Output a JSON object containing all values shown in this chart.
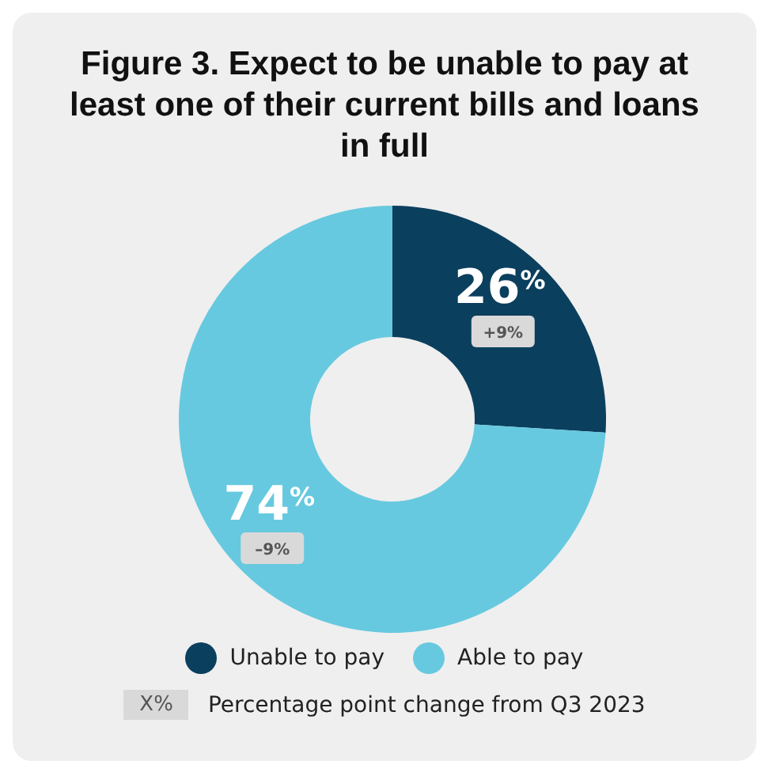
{
  "chart_data": {
    "type": "donut",
    "title": "Figure 3. Expect to be unable to pay at least one of their current bills and loans in full",
    "categories": [
      "Unable to pay",
      "Able to pay"
    ],
    "values": [
      26,
      74
    ],
    "colors": [
      "#0b3f5e",
      "#67c9df"
    ],
    "value_labels": [
      "26$^{%}$",
      "74$^{%}$"
    ],
    "legend": "bottom",
    "annotations": [
      "+9%",
      "–9%",
      "X%",
      "Percentage point change from Q3 2023"
    ]
  }
}
